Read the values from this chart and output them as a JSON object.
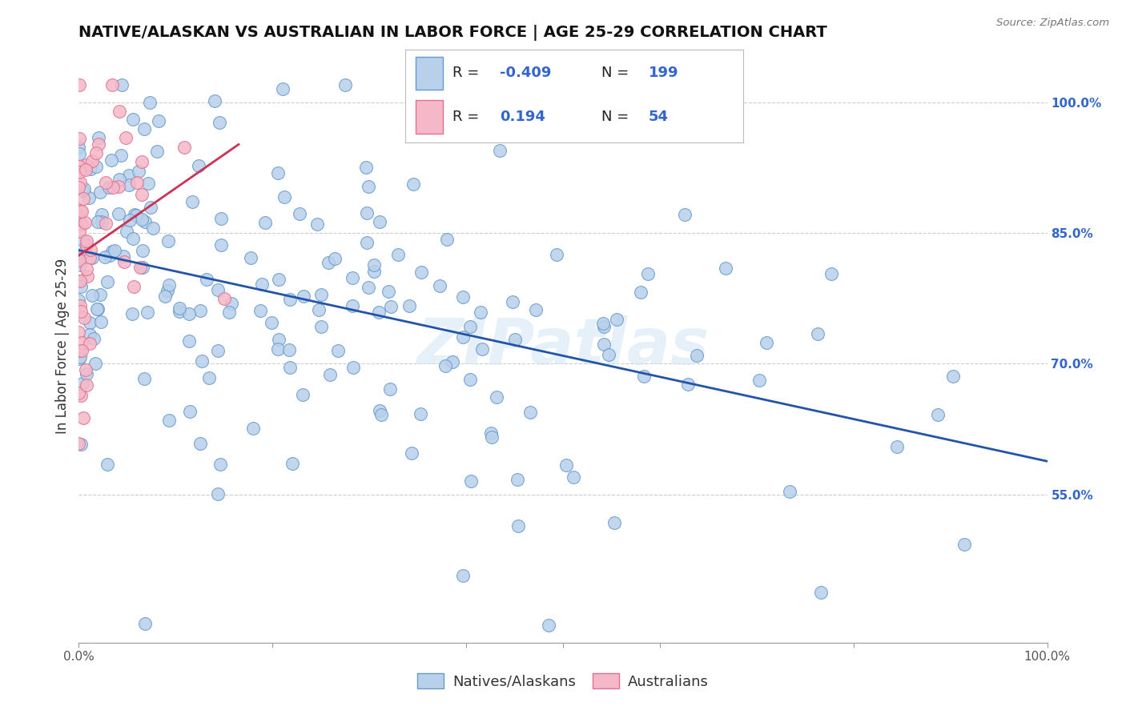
{
  "title": "NATIVE/ALASKAN VS AUSTRALIAN IN LABOR FORCE | AGE 25-29 CORRELATION CHART",
  "source_text": "Source: ZipAtlas.com",
  "ylabel": "In Labor Force | Age 25-29",
  "watermark": "ZIPatlas",
  "xlim": [
    0.0,
    1.0
  ],
  "ylim": [
    0.38,
    1.06
  ],
  "blue_R": "-0.409",
  "blue_N": "199",
  "pink_R": "0.194",
  "pink_N": "54",
  "blue_color": "#b8d0ea",
  "blue_edge": "#6699cc",
  "pink_color": "#f5b8c8",
  "pink_edge": "#e07090",
  "blue_line_color": "#2255aa",
  "pink_line_color": "#cc3355",
  "legend_label_blue": "Natives/Alaskans",
  "legend_label_pink": "Australians",
  "background_color": "#ffffff",
  "grid_color": "#cccccc",
  "title_fontsize": 14,
  "axis_fontsize": 12,
  "tick_fontsize": 11,
  "legend_fontsize": 13,
  "ytick_color": "#3366cc",
  "xtick_color": "#555555"
}
